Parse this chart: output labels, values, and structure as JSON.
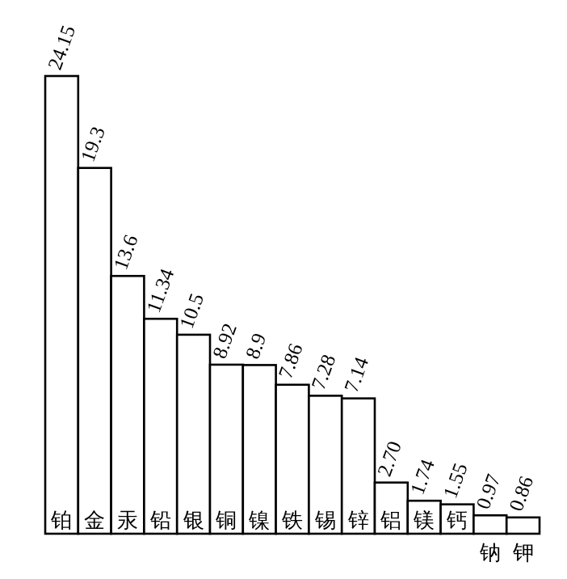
{
  "chart_data": {
    "type": "bar",
    "categories": [
      "铂",
      "金",
      "汞",
      "铅",
      "银",
      "铜",
      "镍",
      "铁",
      "锡",
      "锌",
      "铝",
      "镁",
      "钙",
      "钠",
      "钾"
    ],
    "values": [
      24.15,
      19.3,
      13.6,
      11.34,
      10.5,
      8.92,
      8.9,
      7.86,
      7.28,
      7.14,
      2.7,
      1.74,
      1.55,
      0.97,
      0.86
    ],
    "value_labels": [
      "24.15",
      "19.3",
      "13.6",
      "11.34",
      "10.5",
      "8.92",
      "8.9",
      "7.86",
      "7.28",
      "7.14",
      "2.70",
      "1.74",
      "1.55",
      "0.97",
      "0.86"
    ],
    "color": "#ffffff"
  }
}
